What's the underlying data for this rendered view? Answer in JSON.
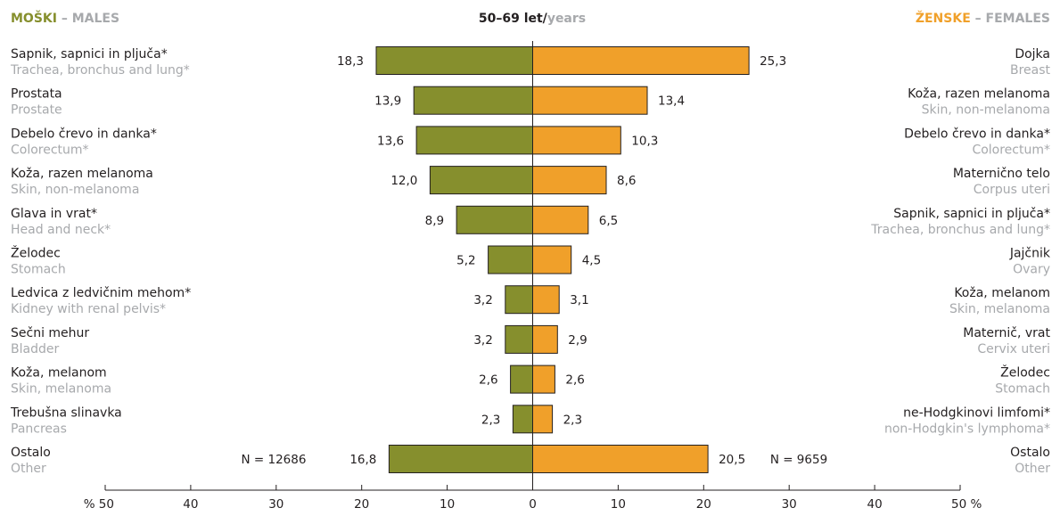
{
  "header": {
    "left_si": "MOŠKI",
    "left_sep": " – ",
    "left_en": "MALES",
    "center_si": "50–69 let/",
    "center_en": "years",
    "right_si": "ŽENSKE",
    "right_sep": " – ",
    "right_en": "FEMALES"
  },
  "colors": {
    "males": "#868f2d",
    "females": "#f0a02a",
    "header_grey": "#a7a9ac",
    "text": "#231f20"
  },
  "chart_data": {
    "type": "bar",
    "orientation": "horizontal-butterfly",
    "xlim": [
      -50,
      50
    ],
    "x_ticks": [
      "% 50",
      "40",
      "30",
      "20",
      "10",
      "0",
      "10",
      "20",
      "30",
      "40",
      "50 %"
    ],
    "males": {
      "total": "N = 12686",
      "rows": [
        {
          "label_si": "Sapnik, sapnici in pljuča*",
          "label_en": "Trachea, bronchus and lung*",
          "value": 18.3,
          "value_label": "18,3"
        },
        {
          "label_si": "Prostata",
          "label_en": "Prostate",
          "value": 13.9,
          "value_label": "13,9"
        },
        {
          "label_si": "Debelo črevo in danka*",
          "label_en": "Colorectum*",
          "value": 13.6,
          "value_label": "13,6"
        },
        {
          "label_si": "Koža, razen melanoma",
          "label_en": "Skin, non-melanoma",
          "value": 12.0,
          "value_label": "12,0"
        },
        {
          "label_si": "Glava in vrat*",
          "label_en": "Head and neck*",
          "value": 8.9,
          "value_label": "8,9"
        },
        {
          "label_si": "Želodec",
          "label_en": "Stomach",
          "value": 5.2,
          "value_label": "5,2"
        },
        {
          "label_si": "Ledvica z ledvičnim mehom*",
          "label_en": "Kidney with renal pelvis*",
          "value": 3.2,
          "value_label": "3,2"
        },
        {
          "label_si": "Sečni mehur",
          "label_en": "Bladder",
          "value": 3.2,
          "value_label": "3,2"
        },
        {
          "label_si": "Koža, melanom",
          "label_en": "Skin, melanoma",
          "value": 2.6,
          "value_label": "2,6"
        },
        {
          "label_si": "Trebušna slinavka",
          "label_en": "Pancreas",
          "value": 2.3,
          "value_label": "2,3"
        },
        {
          "label_si": "Ostalo",
          "label_en": "Other",
          "value": 16.8,
          "value_label": "16,8"
        }
      ]
    },
    "females": {
      "total": "N = 9659",
      "rows": [
        {
          "label_si": "Dojka",
          "label_en": "Breast",
          "value": 25.3,
          "value_label": "25,3"
        },
        {
          "label_si": "Koža, razen melanoma",
          "label_en": "Skin, non-melanoma",
          "value": 13.4,
          "value_label": "13,4"
        },
        {
          "label_si": "Debelo črevo in danka*",
          "label_en": "Colorectum*",
          "value": 10.3,
          "value_label": "10,3"
        },
        {
          "label_si": "Maternično telo",
          "label_en": "Corpus uteri",
          "value": 8.6,
          "value_label": "8,6"
        },
        {
          "label_si": "Sapnik, sapnici in pljuča*",
          "label_en": "Trachea, bronchus and lung*",
          "value": 6.5,
          "value_label": "6,5"
        },
        {
          "label_si": "Jajčnik",
          "label_en": "Ovary",
          "value": 4.5,
          "value_label": "4,5"
        },
        {
          "label_si": "Koža, melanom",
          "label_en": "Skin, melanoma",
          "value": 3.1,
          "value_label": "3,1"
        },
        {
          "label_si": "Maternič, vrat",
          "label_en": "Cervix uteri",
          "value": 2.9,
          "value_label": "2,9"
        },
        {
          "label_si": "Želodec",
          "label_en": "Stomach",
          "value": 2.6,
          "value_label": "2,6"
        },
        {
          "label_si": "ne-Hodgkinovi limfomi*",
          "label_en": "non-Hodgkin's lymphoma*",
          "value": 2.3,
          "value_label": "2,3"
        },
        {
          "label_si": "Ostalo",
          "label_en": "Other",
          "value": 20.5,
          "value_label": "20,5"
        }
      ]
    }
  }
}
